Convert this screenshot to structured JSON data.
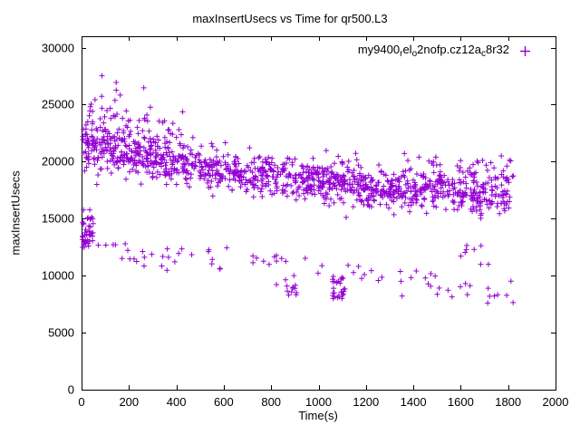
{
  "page": {
    "title": "maxInsertUsecs vs Time for qr500.L3"
  },
  "chart_data": {
    "type": "scatter",
    "title": "maxInsertUsecs vs Time for qr500.L3",
    "xlabel": "Time(s)",
    "ylabel": "maxInsertUsecs",
    "xlim": [
      0,
      2000
    ],
    "ylim": [
      0,
      31000
    ],
    "xticks": [
      0,
      200,
      400,
      600,
      800,
      1000,
      1200,
      1400,
      1600,
      1800,
      2000
    ],
    "yticks": [
      0,
      5000,
      10000,
      15000,
      20000,
      25000,
      30000
    ],
    "grid": false,
    "axis_color": "#000000",
    "background": "#ffffff",
    "legend": {
      "position": "top-right-inside",
      "label": "my9400_rel_o2nofp.cz12a_c8r32",
      "parts": [
        {
          "text": "my9400",
          "sub": false
        },
        {
          "text": "r",
          "sub": true
        },
        {
          "text": "el",
          "sub": false
        },
        {
          "text": "o",
          "sub": true
        },
        {
          "text": "2nofp.cz12a",
          "sub": false
        },
        {
          "text": "c",
          "sub": true
        },
        {
          "text": "8r32",
          "sub": false
        }
      ]
    },
    "marker": {
      "shape": "plus",
      "color": "#9400D3",
      "size": 6
    },
    "seed": 7,
    "series": [
      {
        "name": "my9400_rel_o2nofp.cz12a_c8r32",
        "trend_summary": "dense band decreasing from ~21000 usecs at t=100s to ~16500 usecs at t=1800s, sparse outlier band from ~13000 down to ~8500, high outliers up to ~27500 near t=100-400",
        "clusters": [
          {
            "n": 1150,
            "x": [
              5,
              1815
            ],
            "a": 21500,
            "b": -4.0,
            "c": 0.0008,
            "sd": 900,
            "clamp": [
              14200,
              23800
            ]
          },
          {
            "n": 130,
            "x": [
              15,
              430
            ],
            "a": 22500,
            "b": -3.0,
            "c": 0,
            "sd": 1600,
            "clamp": [
              18000,
              26200
            ]
          },
          {
            "n": 6,
            "x": [
              80,
              300
            ],
            "a": 26500,
            "b": 0,
            "c": 0,
            "sd": 700,
            "clamp": [
              25000,
              27600
            ]
          },
          {
            "n": 40,
            "x": [
              2,
              50
            ],
            "a": 13900,
            "b": 0,
            "c": 0,
            "sd": 900,
            "clamp": [
              12500,
              16800
            ]
          },
          {
            "n": 22,
            "x": [
              60,
              430
            ],
            "a": 12800,
            "b": -4.0,
            "c": 0,
            "sd": 650,
            "clamp": [
              10200,
              13600
            ]
          },
          {
            "n": 60,
            "x": [
              430,
              1830
            ],
            "a": 12900,
            "b": -2.5,
            "c": 0,
            "sd": 650,
            "clamp": [
              7600,
              13800
            ]
          },
          {
            "n": 26,
            "x": [
              1055,
              1110
            ],
            "a": 8900,
            "b": 0,
            "c": 0,
            "sd": 550,
            "clamp": [
              7800,
              10200
            ]
          },
          {
            "n": 10,
            "x": [
              860,
              930
            ],
            "a": 8700,
            "b": 0,
            "c": 0,
            "sd": 300,
            "clamp": [
              8000,
              9400
            ]
          },
          {
            "n": 26,
            "x": [
              1580,
              1825
            ],
            "a": 19400,
            "b": 0,
            "c": 0,
            "sd": 550,
            "clamp": [
              18200,
              20600
            ]
          },
          {
            "n": 8,
            "x": [
              1400,
              1520
            ],
            "a": 19900,
            "b": 0,
            "c": 0,
            "sd": 300,
            "clamp": [
              19300,
              20400
            ]
          },
          {
            "n": 8,
            "x": [
              1590,
              1720
            ],
            "a": 12300,
            "b": 0,
            "c": 0,
            "sd": 600,
            "clamp": [
              11000,
              13400
            ]
          }
        ]
      }
    ]
  }
}
